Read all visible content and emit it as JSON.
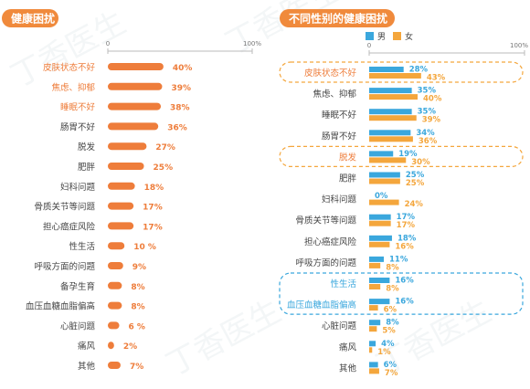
{
  "panels": [
    {
      "title": "健康困扰",
      "title_color": "#f08a3c"
    },
    {
      "title": "不同性别的健康困扰",
      "title_color": "#f08a3c"
    }
  ],
  "watermark": "丁香医生",
  "colors": {
    "orange": "#ee7d3b",
    "blue": "#3aa7dd",
    "yellow": "#f4a63c",
    "dark_text": "#444444"
  },
  "chart_data": [
    {
      "type": "bar",
      "orientation": "horizontal",
      "title": "健康困扰",
      "axis_ticks": [
        "0",
        "100%"
      ],
      "xlim": [
        0,
        100
      ],
      "categories": [
        "皮肤状态不好",
        "焦虑、抑郁",
        "睡眠不好",
        "肠胃不好",
        "脱发",
        "肥胖",
        "妇科问题",
        "骨质关节等问题",
        "担心癌症风险",
        "性生活",
        "呼吸方面的问题",
        "备孕生育",
        "血压血糖血脂偏高",
        "心脏问题",
        "痛风",
        "其他"
      ],
      "values": [
        40,
        39,
        38,
        36,
        27,
        25,
        18,
        17,
        17,
        10,
        9,
        8,
        8,
        6,
        2,
        7
      ],
      "value_labels": [
        "40%",
        "39%",
        "38%",
        "36%",
        "27%",
        "25%",
        "18%",
        "17%",
        "17%",
        "10 %",
        "9%",
        "8%",
        "8%",
        "6 %",
        "2%",
        "7%"
      ],
      "highlighted_labels": [
        "皮肤状态不好",
        "焦虑、抑郁",
        "睡眠不好"
      ],
      "grid": false
    },
    {
      "type": "bar",
      "orientation": "horizontal",
      "title": "不同性别的健康困扰",
      "axis_ticks": [
        "0",
        "100%"
      ],
      "xlim": [
        0,
        100
      ],
      "legend": "top-left",
      "categories": [
        "皮肤状态不好",
        "焦虑、抑郁",
        "睡眠不好",
        "肠胃不好",
        "脱发",
        "肥胖",
        "妇科问题",
        "骨质关节等问题",
        "担心癌症风险",
        "呼吸方面的问题",
        "性生活",
        "血压血糖血脂偏高",
        "心脏问题",
        "痛风",
        "其他"
      ],
      "series": [
        {
          "name": "男",
          "color": "#3aa7dd",
          "values": [
            28,
            35,
            35,
            34,
            19,
            25,
            0,
            17,
            18,
            11,
            16,
            16,
            8,
            4,
            6
          ]
        },
        {
          "name": "女",
          "color": "#f4a63c",
          "values": [
            43,
            40,
            39,
            36,
            30,
            25,
            24,
            17,
            16,
            8,
            8,
            6,
            5,
            1,
            7
          ]
        }
      ],
      "label_colors": [
        "#ee7d3b",
        "#444444",
        "#444444",
        "#444444",
        "#ee7d3b",
        "#444444",
        "#444444",
        "#444444",
        "#444444",
        "#444444",
        "#3aa7dd",
        "#3aa7dd",
        "#444444",
        "#444444",
        "#444444"
      ],
      "highlight_boxes": [
        {
          "categories": [
            "皮肤状态不好"
          ],
          "color": "#f4a63c"
        },
        {
          "categories": [
            "脱发"
          ],
          "color": "#f4a63c"
        },
        {
          "categories": [
            "性生活",
            "血压血糖血脂偏高"
          ],
          "color": "#3aa7dd"
        }
      ],
      "grid": false
    }
  ]
}
